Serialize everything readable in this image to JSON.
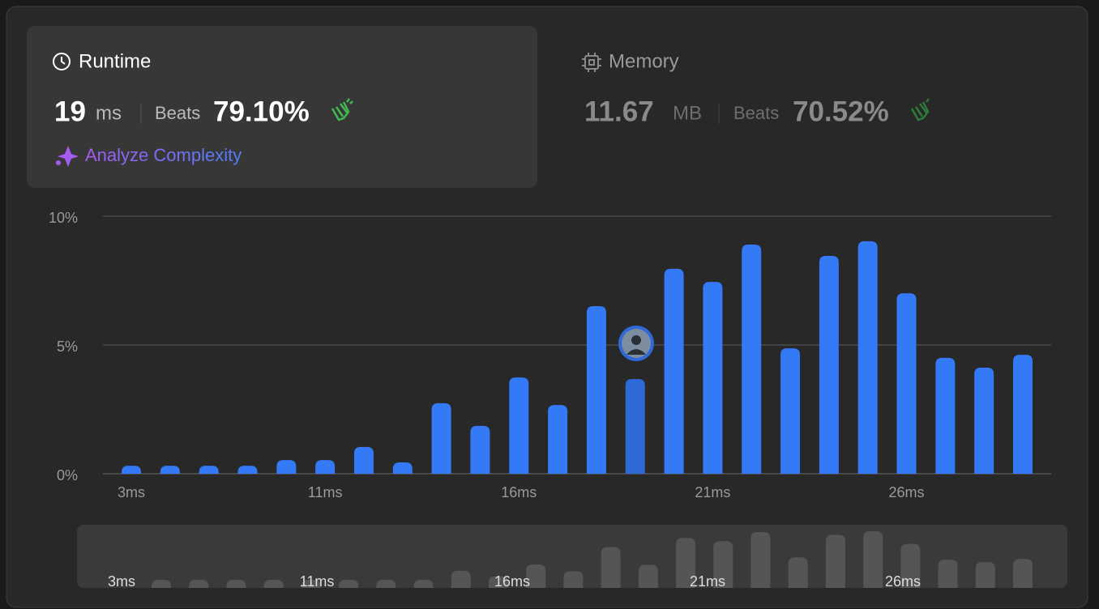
{
  "runtime": {
    "title": "Runtime",
    "value": "19",
    "unit": "ms",
    "beats_label": "Beats",
    "beats": "79.10%",
    "analyze": "Analyze Complexity"
  },
  "memory": {
    "title": "Memory",
    "value": "11.67",
    "unit": "MB",
    "beats_label": "Beats",
    "beats": "70.52%"
  },
  "chart_data": {
    "type": "bar",
    "categories": [
      "3ms",
      null,
      null,
      null,
      null,
      "11ms",
      null,
      null,
      null,
      null,
      "16ms",
      null,
      null,
      null,
      null,
      "21ms",
      null,
      null,
      null,
      null,
      "26ms",
      null,
      null,
      null
    ],
    "values": [
      0.31,
      0.31,
      0.31,
      0.31,
      0.53,
      0.53,
      1.04,
      0.44,
      2.74,
      1.86,
      3.74,
      2.67,
      6.51,
      3.68,
      7.96,
      7.45,
      8.9,
      4.87,
      8.46,
      9.03,
      7.01,
      4.5,
      4.12,
      4.62
    ],
    "colors": [
      "#3479f6",
      "#3479f6",
      "#3479f6",
      "#3479f6",
      "#3479f6",
      "#3479f6",
      "#3479f6",
      "#3479f6",
      "#3479f6",
      "#3479f6",
      "#3479f6",
      "#3479f6",
      "#3479f6",
      "#2d6ad8",
      "#3479f6",
      "#3479f6",
      "#3479f6",
      "#3479f6",
      "#3479f6",
      "#3479f6",
      "#3479f6",
      "#3479f6",
      "#3479f6",
      "#3479f6"
    ],
    "ylim": [
      0,
      10
    ],
    "yticks": [
      {
        "value": 0,
        "label": "0%"
      },
      {
        "value": 5,
        "label": "5%"
      },
      {
        "value": 10,
        "label": "10%"
      }
    ],
    "grid": true
  }
}
